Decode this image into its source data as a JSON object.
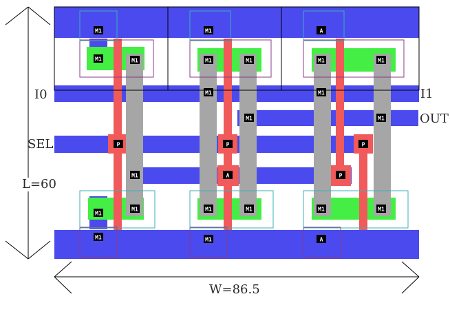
{
  "labels": {
    "i0": "I0",
    "i1": "I1",
    "sel": "SEL",
    "out": "OUT",
    "height": "L=60",
    "width": "W=86.5"
  },
  "contact_text": {
    "metal_via": "M1",
    "poly_contact": "P",
    "active_contact": "A"
  },
  "colors": {
    "background": "#ffffff",
    "metal": "#4a4aee",
    "poly": "#f05a5a",
    "active": "#44ee44",
    "metal2": "#a6a6a6",
    "nwell_outline": "#8a3a8a",
    "select_outline": "#3ab0b8",
    "cell_border": "#000000",
    "dimension_line": "#000000"
  }
}
